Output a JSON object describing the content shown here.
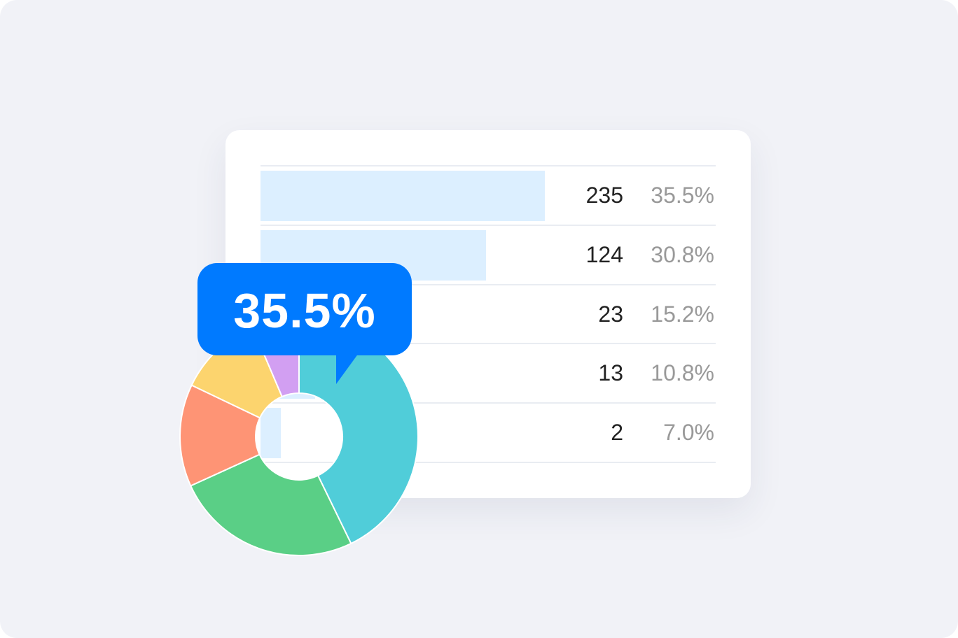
{
  "rows": [
    {
      "count": "235",
      "percent": "35.5%",
      "bar_fraction": 0.625
    },
    {
      "count": "124",
      "percent": "30.8%",
      "bar_fraction": 0.495
    },
    {
      "count": "23",
      "percent": "15.2%",
      "bar_fraction": 0.2
    },
    {
      "count": "13",
      "percent": "10.8%",
      "bar_fraction": 0.12
    },
    {
      "count": "2",
      "percent": "7.0%",
      "bar_fraction": 0.045
    }
  ],
  "tooltip": {
    "label": "35.5%"
  },
  "colors": {
    "background": "#f1f2f7",
    "bar": "#dcefff",
    "tooltip": "#007aff"
  },
  "chart_data": {
    "type": "pie",
    "donut": true,
    "slices": [
      {
        "color": "#50cdd9",
        "value": 42.8
      },
      {
        "color": "#5acf86",
        "value": 25.4
      },
      {
        "color": "#fe9475",
        "value": 13.9
      },
      {
        "color": "#fcd46e",
        "value": 11.5
      },
      {
        "color": "#d29ff2",
        "value": 6.4
      }
    ]
  }
}
